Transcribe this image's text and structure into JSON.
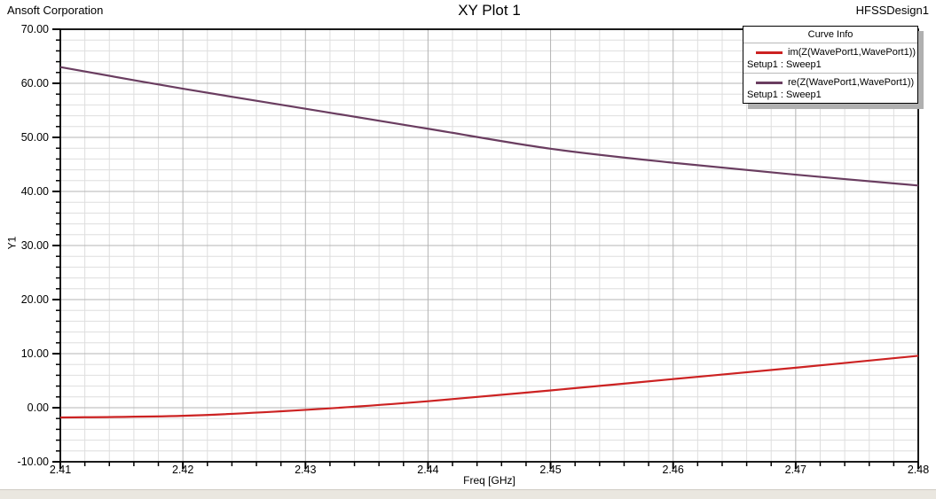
{
  "header": {
    "corporation": "Ansoft Corporation",
    "title": "XY Plot 1",
    "design": "HFSSDesign1"
  },
  "legend": {
    "title": "Curve Info",
    "entries": [
      {
        "label": "im(Z(WavePort1,WavePort1))",
        "sublabel": "Setup1 : Sweep1",
        "color": "#cc2222"
      },
      {
        "label": "re(Z(WavePort1,WavePort1))",
        "sublabel": "Setup1 : Sweep1",
        "color": "#6a3d60"
      }
    ]
  },
  "axes": {
    "x_label": "Freq [GHz]",
    "y_label": "Y1",
    "x_ticks": [
      "2.41",
      "2.42",
      "2.43",
      "2.44",
      "2.45",
      "2.46",
      "2.47",
      "2.48"
    ],
    "y_ticks": [
      "70.00",
      "60.00",
      "50.00",
      "40.00",
      "30.00",
      "20.00",
      "10.00",
      "0.00",
      "-10.00"
    ]
  },
  "colors": {
    "grid_minor": "#dedede",
    "grid_major": "#b4b4b4",
    "axis": "#000000",
    "im_curve": "#cc2222",
    "re_curve": "#6a3d60"
  },
  "chart_data": {
    "type": "line",
    "title": "XY Plot 1",
    "xlabel": "Freq [GHz]",
    "ylabel": "Y1",
    "xlim": [
      2.41,
      2.48
    ],
    "ylim": [
      -10,
      70
    ],
    "x_major_step": 0.01,
    "x_minor_step": 0.002,
    "y_major_step": 10,
    "y_minor_step": 2,
    "grid": true,
    "legend_position": "top-right",
    "x": [
      2.41,
      2.42,
      2.43,
      2.44,
      2.45,
      2.46,
      2.47,
      2.48
    ],
    "series": [
      {
        "name": "im(Z(WavePort1,WavePort1))",
        "setup": "Setup1 : Sweep1",
        "color": "#cc2222",
        "values": [
          -1.8,
          -1.5,
          -0.4,
          1.2,
          3.2,
          5.3,
          7.4,
          9.6
        ]
      },
      {
        "name": "re(Z(WavePort1,WavePort1))",
        "setup": "Setup1 : Sweep1",
        "color": "#6a3d60",
        "values": [
          63.0,
          59.0,
          55.3,
          51.6,
          47.9,
          45.3,
          43.1,
          41.1
        ]
      }
    ]
  }
}
